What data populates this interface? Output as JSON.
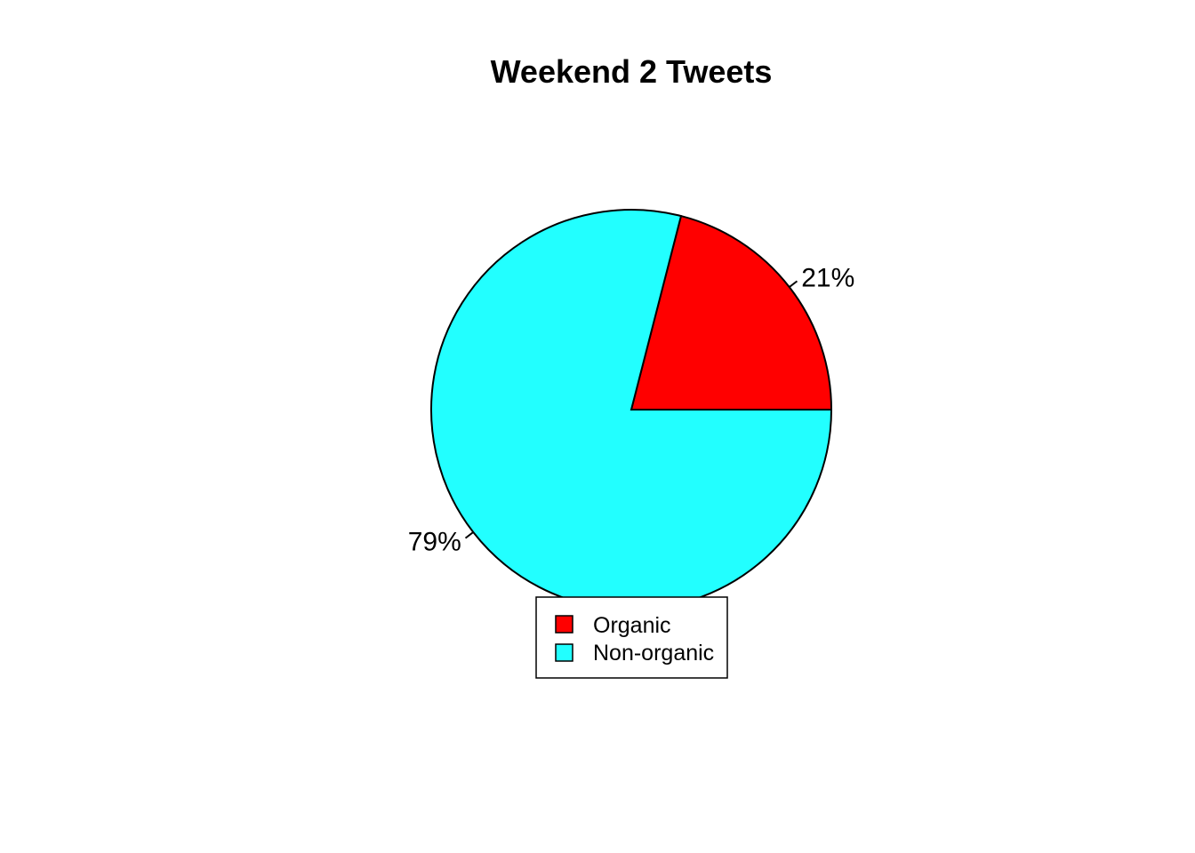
{
  "chart_data": {
    "type": "pie",
    "title": "Weekend 2 Tweets",
    "categories": [
      "Organic",
      "Non-organic"
    ],
    "values": [
      21,
      79
    ],
    "labels": [
      "21%",
      "79%"
    ],
    "colors": [
      "#ff0000",
      "#22ffff"
    ],
    "start_angle_deg": 0,
    "direction": "counterclockwise",
    "legend": {
      "position": "bottom",
      "entries": [
        "Organic",
        "Non-organic"
      ]
    }
  }
}
